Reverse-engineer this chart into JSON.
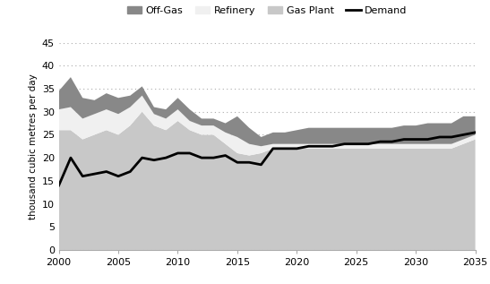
{
  "years": [
    2000,
    2001,
    2002,
    2003,
    2004,
    2005,
    2006,
    2007,
    2008,
    2009,
    2010,
    2011,
    2012,
    2013,
    2014,
    2015,
    2016,
    2017,
    2018,
    2019,
    2020,
    2021,
    2022,
    2023,
    2024,
    2025,
    2026,
    2027,
    2028,
    2029,
    2030,
    2031,
    2032,
    2033,
    2034,
    2035
  ],
  "gas_plant": [
    26,
    26,
    24,
    25,
    26,
    25,
    27,
    30,
    27,
    26,
    28,
    26,
    25,
    25,
    23,
    21,
    20.5,
    21,
    22,
    22,
    22,
    22,
    22,
    22,
    22,
    22,
    22,
    22,
    22,
    22,
    22,
    22,
    22,
    22,
    23,
    24
  ],
  "refinery": [
    4.5,
    5,
    4.5,
    4.5,
    4.5,
    4.5,
    4.0,
    3.5,
    2.5,
    2.5,
    2.5,
    2.0,
    2.0,
    2.0,
    2.5,
    3.5,
    2.5,
    1.5,
    1.0,
    1.0,
    1.0,
    1.0,
    1.0,
    1.0,
    1.0,
    1.0,
    1.0,
    1.0,
    1.0,
    1.0,
    1.0,
    1.0,
    1.0,
    1.0,
    1.0,
    1.0
  ],
  "off_gas": [
    4.0,
    6.5,
    4.5,
    3.0,
    3.5,
    3.5,
    2.5,
    2.0,
    1.5,
    2.0,
    2.5,
    2.5,
    1.5,
    1.5,
    2.0,
    4.5,
    3.5,
    2.0,
    2.5,
    2.5,
    3.0,
    3.5,
    3.5,
    3.5,
    3.5,
    3.5,
    3.5,
    3.5,
    3.5,
    4.0,
    4.0,
    4.5,
    4.5,
    4.5,
    5.0,
    4.0
  ],
  "demand": [
    14,
    20,
    16,
    16.5,
    17,
    16,
    17,
    20,
    19.5,
    20,
    21,
    21,
    20,
    20,
    20.5,
    19,
    19,
    18.5,
    22,
    22,
    22,
    22.5,
    22.5,
    22.5,
    23,
    23,
    23,
    23.5,
    23.5,
    24,
    24,
    24,
    24.5,
    24.5,
    25,
    25.5
  ],
  "color_gas_plant": "#c8c8c8",
  "color_refinery": "#f0f0f0",
  "color_off_gas": "#888888",
  "color_demand": "#000000",
  "ylabel": "thousand cubic metres per day",
  "ylim": [
    0,
    45
  ],
  "yticks": [
    0,
    5,
    10,
    15,
    20,
    25,
    30,
    35,
    40,
    45
  ],
  "xlim": [
    2000,
    2035
  ],
  "xticks": [
    2000,
    2005,
    2010,
    2015,
    2020,
    2025,
    2030,
    2035
  ],
  "legend_labels": [
    "Off-Gas",
    "Refinery",
    "Gas Plant",
    "Demand"
  ],
  "legend_colors": [
    "#888888",
    "#f0f0f0",
    "#c8c8c8",
    "#000000"
  ],
  "bg_color": "#ffffff"
}
